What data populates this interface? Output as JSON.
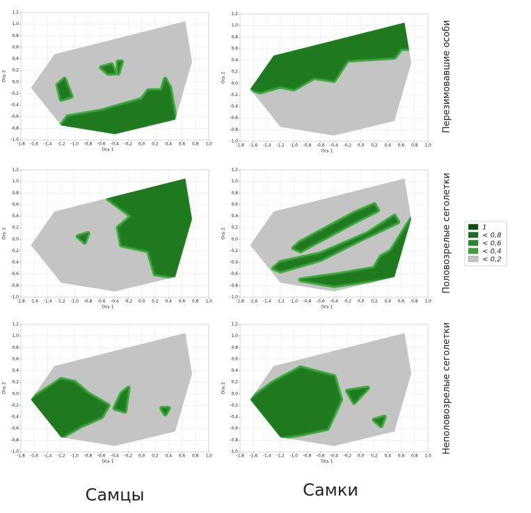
{
  "chart_data": [
    {
      "type": "contour",
      "xlabel": "Ось 1",
      "ylabel": "Ось 2",
      "xlim": [
        -1.8,
        1.0
      ],
      "ylim": [
        -1.0,
        1.2
      ],
      "grid": true,
      "xticks": [
        {
          "value": -1.8,
          "label": "-1,8"
        },
        {
          "value": -1.6,
          "label": "-1,6"
        },
        {
          "value": -1.4,
          "label": "-1,4"
        },
        {
          "value": -1.2,
          "label": "-1,2"
        },
        {
          "value": -1.0,
          "label": "-1,0"
        },
        {
          "value": -0.8,
          "label": "-0,8"
        },
        {
          "value": -0.6,
          "label": "-0,6"
        },
        {
          "value": -0.4,
          "label": "-0,4"
        },
        {
          "value": -0.2,
          "label": "-0,2"
        },
        {
          "value": 0,
          "label": "0,0"
        },
        {
          "value": 0.2,
          "label": "0,2"
        },
        {
          "value": 0.4,
          "label": "0,4"
        },
        {
          "value": 0.6,
          "label": "0,6"
        },
        {
          "value": 0.8,
          "label": "0,8"
        },
        {
          "value": 1.0,
          "label": "1,0"
        }
      ],
      "yticks": [
        {
          "value": -1.0,
          "label": "-1,0"
        },
        {
          "value": -0.8,
          "label": "-0,8"
        },
        {
          "value": -0.6,
          "label": "-0,6"
        },
        {
          "value": -0.4,
          "label": "-0,4"
        },
        {
          "value": -0.2,
          "label": "-0,2"
        },
        {
          "value": 0,
          "label": "0,0"
        },
        {
          "value": 0.2,
          "label": "0,2"
        },
        {
          "value": 0.4,
          "label": "0,4"
        },
        {
          "value": 0.6,
          "label": "0,6"
        },
        {
          "value": 0.8,
          "label": "0,8"
        },
        {
          "value": 1.0,
          "label": "1,0"
        },
        {
          "value": 1.2,
          "label": "1,2"
        }
      ]
    },
    {
      "type": "contour",
      "xlabel": "Ось 1",
      "ylabel": "Ось 2",
      "xlim": [
        -1.8,
        1.0
      ],
      "ylim": [
        -1.0,
        1.2
      ],
      "grid": true,
      "xticks": [
        {
          "value": -1.8,
          "label": "-1,8"
        },
        {
          "value": -1.6,
          "label": "-1,6"
        },
        {
          "value": -1.4,
          "label": "-1,4"
        },
        {
          "value": -1.2,
          "label": "-1,2"
        },
        {
          "value": -1.0,
          "label": "-1,0"
        },
        {
          "value": -0.8,
          "label": "-0,8"
        },
        {
          "value": -0.6,
          "label": "-0,6"
        },
        {
          "value": -0.4,
          "label": "-0,4"
        },
        {
          "value": -0.2,
          "label": "-0,2"
        },
        {
          "value": 0,
          "label": "0,0"
        },
        {
          "value": 0.2,
          "label": "0,2"
        },
        {
          "value": 0.4,
          "label": "0,4"
        },
        {
          "value": 0.6,
          "label": "0,6"
        },
        {
          "value": 0.8,
          "label": "0,8"
        },
        {
          "value": 1.0,
          "label": "1,0"
        }
      ],
      "yticks": [
        {
          "value": -1.0,
          "label": "-1,0"
        },
        {
          "value": -0.8,
          "label": "-0,8"
        },
        {
          "value": -0.6,
          "label": "-0,6"
        },
        {
          "value": -0.4,
          "label": "-0,4"
        },
        {
          "value": -0.2,
          "label": "-0,2"
        },
        {
          "value": 0,
          "label": "0,0"
        },
        {
          "value": 0.2,
          "label": "0,2"
        },
        {
          "value": 0.4,
          "label": "0,4"
        },
        {
          "value": 0.6,
          "label": "0,6"
        },
        {
          "value": 0.8,
          "label": "0,8"
        },
        {
          "value": 1.0,
          "label": "1,0"
        },
        {
          "value": 1.2,
          "label": "1,2"
        }
      ]
    },
    {
      "type": "contour",
      "xlabel": "Ось 1",
      "ylabel": "Ось 2",
      "xlim": [
        -1.8,
        1.0
      ],
      "ylim": [
        -1.0,
        1.2
      ],
      "grid": true,
      "xticks": [
        {
          "value": -1.8,
          "label": "-1,8"
        },
        {
          "value": -1.6,
          "label": "-1,6"
        },
        {
          "value": -1.4,
          "label": "-1,4"
        },
        {
          "value": -1.2,
          "label": "-1,2"
        },
        {
          "value": -1.0,
          "label": "-1,0"
        },
        {
          "value": -0.8,
          "label": "-0,8"
        },
        {
          "value": -0.6,
          "label": "-0,6"
        },
        {
          "value": -0.4,
          "label": "-0,4"
        },
        {
          "value": -0.2,
          "label": "-0,2"
        },
        {
          "value": 0,
          "label": "0,0"
        },
        {
          "value": 0.2,
          "label": "0,2"
        },
        {
          "value": 0.4,
          "label": "0,4"
        },
        {
          "value": 0.6,
          "label": "0,6"
        },
        {
          "value": 0.8,
          "label": "0,8"
        },
        {
          "value": 1.0,
          "label": "1,0"
        }
      ],
      "yticks": [
        {
          "value": -1.0,
          "label": "-1,0"
        },
        {
          "value": -0.8,
          "label": "-0,8"
        },
        {
          "value": -0.6,
          "label": "-0,6"
        },
        {
          "value": -0.4,
          "label": "-0,4"
        },
        {
          "value": -0.2,
          "label": "-0,2"
        },
        {
          "value": 0,
          "label": "0,0"
        },
        {
          "value": 0.2,
          "label": "0,2"
        },
        {
          "value": 0.4,
          "label": "0,4"
        },
        {
          "value": 0.6,
          "label": "0,6"
        },
        {
          "value": 0.8,
          "label": "0,8"
        },
        {
          "value": 1.0,
          "label": "1,0"
        },
        {
          "value": 1.2,
          "label": "1,2"
        }
      ]
    },
    {
      "type": "contour",
      "xlabel": "Ось 1",
      "ylabel": "Ось 2",
      "xlim": [
        -1.8,
        1.0
      ],
      "ylim": [
        -1.0,
        1.2
      ],
      "grid": true,
      "xticks": [
        {
          "value": -1.8,
          "label": "-1,8"
        },
        {
          "value": -1.6,
          "label": "-1,6"
        },
        {
          "value": -1.4,
          "label": "-1,4"
        },
        {
          "value": -1.2,
          "label": "-1,2"
        },
        {
          "value": -1.0,
          "label": "-1,0"
        },
        {
          "value": -0.8,
          "label": "-0,8"
        },
        {
          "value": -0.6,
          "label": "-0,6"
        },
        {
          "value": -0.4,
          "label": "-0,4"
        },
        {
          "value": -0.2,
          "label": "-0,2"
        },
        {
          "value": 0,
          "label": "0,0"
        },
        {
          "value": 0.2,
          "label": "0,2"
        },
        {
          "value": 0.4,
          "label": "0,4"
        },
        {
          "value": 0.6,
          "label": "0,6"
        },
        {
          "value": 0.8,
          "label": "0,8"
        },
        {
          "value": 1.0,
          "label": "1,0"
        }
      ],
      "yticks": [
        {
          "value": -1.0,
          "label": "-1,0"
        },
        {
          "value": -0.8,
          "label": "-0,8"
        },
        {
          "value": -0.6,
          "label": "-0,6"
        },
        {
          "value": -0.4,
          "label": "-0,4"
        },
        {
          "value": -0.2,
          "label": "-0,2"
        },
        {
          "value": 0,
          "label": "0,0"
        },
        {
          "value": 0.2,
          "label": "0,2"
        },
        {
          "value": 0.4,
          "label": "0,4"
        },
        {
          "value": 0.6,
          "label": "0,6"
        },
        {
          "value": 0.8,
          "label": "0,8"
        },
        {
          "value": 1.0,
          "label": "1,0"
        },
        {
          "value": 1.2,
          "label": "1,2"
        }
      ]
    },
    {
      "type": "contour",
      "xlabel": "Ось 1",
      "ylabel": "Ось 2",
      "xlim": [
        -1.8,
        1.0
      ],
      "ylim": [
        -1.0,
        1.2
      ],
      "grid": true,
      "xticks": [
        {
          "value": -1.8,
          "label": "-1,8"
        },
        {
          "value": -1.6,
          "label": "-1,6"
        },
        {
          "value": -1.4,
          "label": "-1,4"
        },
        {
          "value": -1.2,
          "label": "-1,2"
        },
        {
          "value": -1.0,
          "label": "-1,0"
        },
        {
          "value": -0.8,
          "label": "-0,8"
        },
        {
          "value": -0.6,
          "label": "-0,6"
        },
        {
          "value": -0.4,
          "label": "-0,4"
        },
        {
          "value": -0.2,
          "label": "-0,2"
        },
        {
          "value": 0,
          "label": "0,0"
        },
        {
          "value": 0.2,
          "label": "0,2"
        },
        {
          "value": 0.4,
          "label": "0,4"
        },
        {
          "value": 0.6,
          "label": "0,6"
        },
        {
          "value": 0.8,
          "label": "0,8"
        },
        {
          "value": 1.0,
          "label": "1,0"
        }
      ],
      "yticks": [
        {
          "value": -1.0,
          "label": "-1,0"
        },
        {
          "value": -0.8,
          "label": "-0,8"
        },
        {
          "value": -0.6,
          "label": "-0,6"
        },
        {
          "value": -0.4,
          "label": "-0,4"
        },
        {
          "value": -0.2,
          "label": "-0,2"
        },
        {
          "value": 0,
          "label": "0,0"
        },
        {
          "value": 0.2,
          "label": "0,2"
        },
        {
          "value": 0.4,
          "label": "0,4"
        },
        {
          "value": 0.6,
          "label": "0,6"
        },
        {
          "value": 0.8,
          "label": "0,8"
        },
        {
          "value": 1.0,
          "label": "1,0"
        },
        {
          "value": 1.2,
          "label": "1,2"
        }
      ]
    },
    {
      "type": "contour",
      "xlabel": "Ось 1",
      "ylabel": "Ось 2",
      "xlim": [
        -1.8,
        1.0
      ],
      "ylim": [
        -1.0,
        1.2
      ],
      "grid": true,
      "xticks": [
        {
          "value": -1.8,
          "label": "-1,8"
        },
        {
          "value": -1.6,
          "label": "-1,6"
        },
        {
          "value": -1.4,
          "label": "-1,4"
        },
        {
          "value": -1.2,
          "label": "-1,2"
        },
        {
          "value": -1.0,
          "label": "-1,0"
        },
        {
          "value": -0.8,
          "label": "-0,8"
        },
        {
          "value": -0.6,
          "label": "-0,6"
        },
        {
          "value": -0.4,
          "label": "-0,4"
        },
        {
          "value": -0.2,
          "label": "-0,2"
        },
        {
          "value": 0,
          "label": "0,0"
        },
        {
          "value": 0.2,
          "label": "0,2"
        },
        {
          "value": 0.4,
          "label": "0,4"
        },
        {
          "value": 0.6,
          "label": "0,6"
        },
        {
          "value": 0.8,
          "label": "0,8"
        },
        {
          "value": 1.0,
          "label": "1,0"
        }
      ],
      "yticks": [
        {
          "value": -1.0,
          "label": "-1,0"
        },
        {
          "value": -0.8,
          "label": "-0,8"
        },
        {
          "value": -0.6,
          "label": "-0,6"
        },
        {
          "value": -0.4,
          "label": "-0,4"
        },
        {
          "value": -0.2,
          "label": "-0,2"
        },
        {
          "value": 0,
          "label": "0,0"
        },
        {
          "value": 0.2,
          "label": "0,2"
        },
        {
          "value": 0.4,
          "label": "0,4"
        },
        {
          "value": 0.6,
          "label": "0,6"
        },
        {
          "value": 0.8,
          "label": "0,8"
        },
        {
          "value": 1.0,
          "label": "1,0"
        },
        {
          "value": 1.2,
          "label": "1,2"
        }
      ]
    }
  ],
  "legend": {
    "items": [
      {
        "label": "1",
        "color": "#0e4f0e"
      },
      {
        "label": "< 0,8",
        "color": "#1c6b1c"
      },
      {
        "label": "< 0,6",
        "color": "#268a26"
      },
      {
        "label": "< 0,4",
        "color": "#34a334"
      },
      {
        "label": "< 0,2",
        "color": "#c4c4c4"
      }
    ]
  },
  "row_labels": [
    "Перезимовавшие особи",
    "Половозрелые сеголетки",
    "Неполовозрелые сеголетки"
  ],
  "column_labels": [
    "Самцы",
    "Самки"
  ]
}
